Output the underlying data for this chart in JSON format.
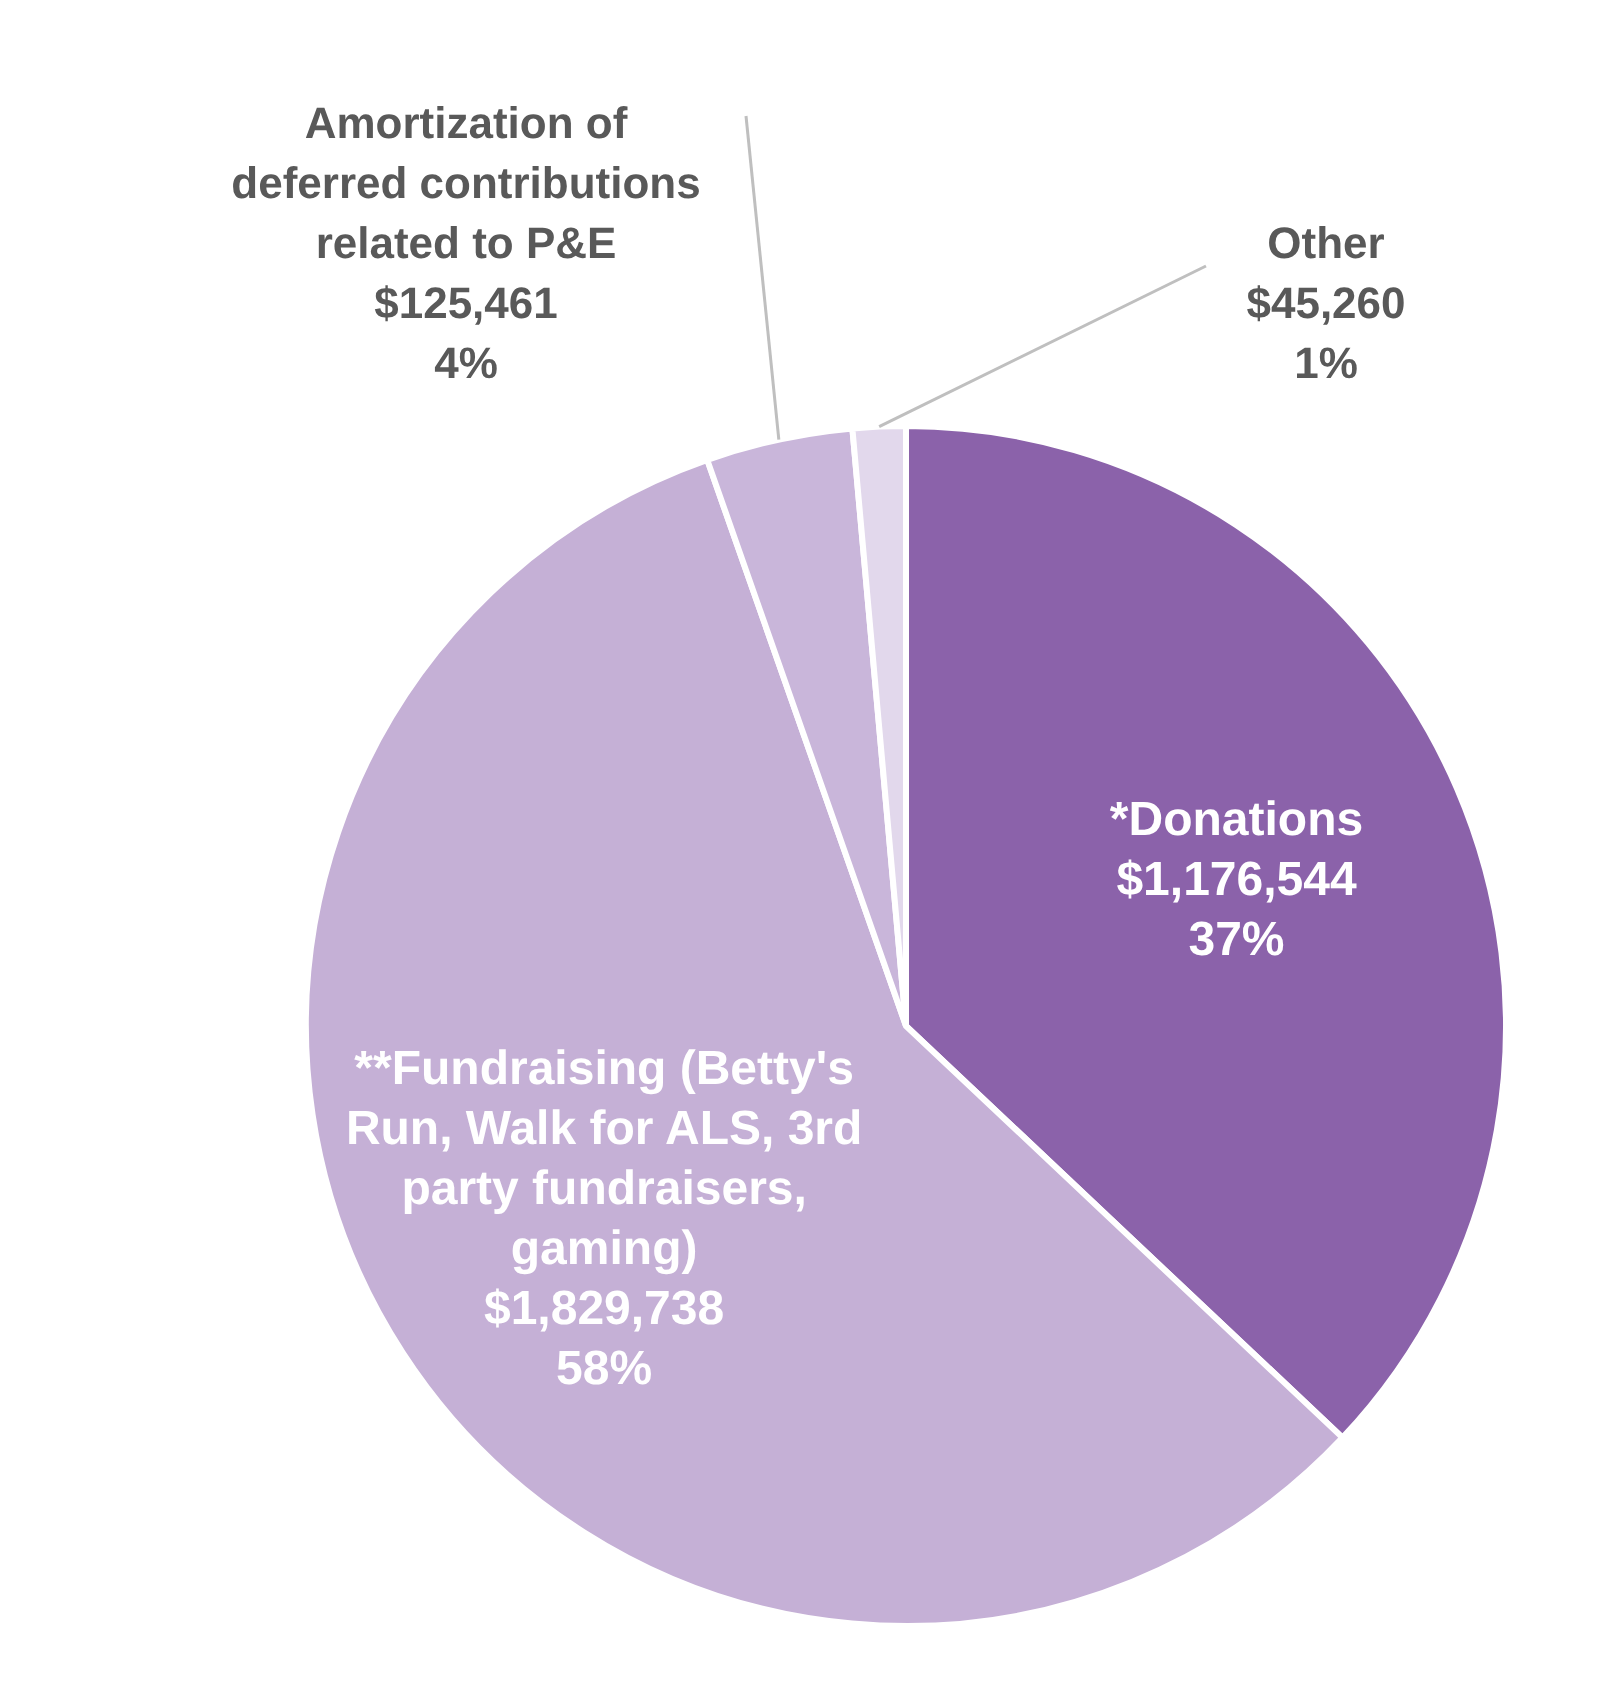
{
  "chart_data": {
    "type": "pie",
    "categories": [
      "*Donations",
      "**Fundraising (Betty's Run, Walk for ALS, 3rd party fundraisers, gaming)",
      "Amortization of deferred contributions related to P&E",
      "Other"
    ],
    "values": [
      1176544,
      1829738,
      125461,
      45260
    ],
    "colors": [
      "#8b62aa",
      "#c5b0d6",
      "#c9b6da",
      "#e2d8ec"
    ],
    "value_labels": [
      "$1,176,544\n37%",
      "$1,829,738\n58%",
      "$125,461\n4%",
      "$45,260\n1%"
    ]
  }
}
